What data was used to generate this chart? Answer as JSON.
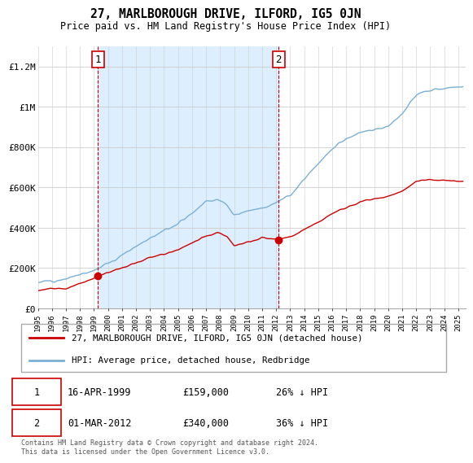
{
  "title": "27, MARLBOROUGH DRIVE, ILFORD, IG5 0JN",
  "subtitle": "Price paid vs. HM Land Registry's House Price Index (HPI)",
  "property_label": "27, MARLBOROUGH DRIVE, ILFORD, IG5 0JN (detached house)",
  "hpi_label": "HPI: Average price, detached house, Redbridge",
  "transaction1_date": "16-APR-1999",
  "transaction1_price": "£159,000",
  "transaction1_hpi": "26% ↓ HPI",
  "transaction2_date": "01-MAR-2012",
  "transaction2_price": "£340,000",
  "transaction2_hpi": "36% ↓ HPI",
  "footer": "Contains HM Land Registry data © Crown copyright and database right 2024.\nThis data is licensed under the Open Government Licence v3.0.",
  "property_color": "#cc0000",
  "hpi_color": "#7ab0d4",
  "shade_color": "#ddeeff",
  "transaction1_x": 1999.29,
  "transaction1_y": 159000,
  "transaction2_x": 2012.17,
  "transaction2_y": 340000,
  "background_color": "#ffffff",
  "grid_color": "#cccccc",
  "ylim": [
    0,
    1300000
  ],
  "xlim_start": 1995.0,
  "xlim_end": 2025.5,
  "yticks": [
    0,
    200000,
    400000,
    600000,
    800000,
    1000000,
    1200000
  ],
  "yticklabels": [
    "£0",
    "£200K",
    "£400K",
    "£600K",
    "£800K",
    "£1M",
    "£1.2M"
  ]
}
